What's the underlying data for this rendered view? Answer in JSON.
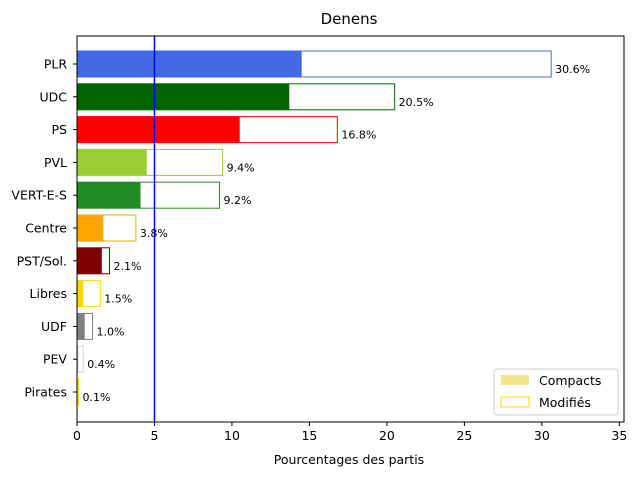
{
  "chart_data": {
    "type": "bar",
    "orientation": "horizontal",
    "title": "Denens",
    "xlabel": "Pourcentages des partis",
    "ylabel": "",
    "xlim": [
      0,
      35.3
    ],
    "xticks": [
      0,
      5,
      10,
      15,
      20,
      25,
      30,
      35
    ],
    "threshold_line": {
      "x": 5,
      "color": "#0000ff"
    },
    "categories": [
      "PLR",
      "UDC",
      "PS",
      "PVL",
      "VERT-E-S",
      "Centre",
      "PST/Sol.",
      "Libres",
      "UDF",
      "PEV",
      "Pirates"
    ],
    "colors": [
      "#4169e1",
      "#006400",
      "#ff0000",
      "#9acd32",
      "#228b22",
      "#ffa500",
      "#800000",
      "#ffd700",
      "#808080",
      "#d3d3d3",
      "#ffd700"
    ],
    "series": [
      {
        "name": "Compacts",
        "values": [
          14.5,
          13.7,
          10.5,
          4.5,
          4.1,
          1.7,
          1.6,
          0.4,
          0.5,
          0.1,
          0.05
        ]
      },
      {
        "name": "Modifiés",
        "values": [
          30.6,
          20.5,
          16.8,
          9.4,
          9.2,
          3.8,
          2.1,
          1.5,
          1.0,
          0.4,
          0.1
        ]
      }
    ],
    "data_labels": [
      "30.6%",
      "20.5%",
      "16.8%",
      "9.4%",
      "9.2%",
      "3.8%",
      "2.1%",
      "1.5%",
      "1.0%",
      "0.4%",
      "0.1%"
    ],
    "legend": {
      "position": "lower-right",
      "entries": [
        {
          "label": "Compacts",
          "color": "#f0e68c"
        },
        {
          "label": "Modifiés",
          "color": "#ffd700"
        }
      ]
    },
    "grid": false
  }
}
